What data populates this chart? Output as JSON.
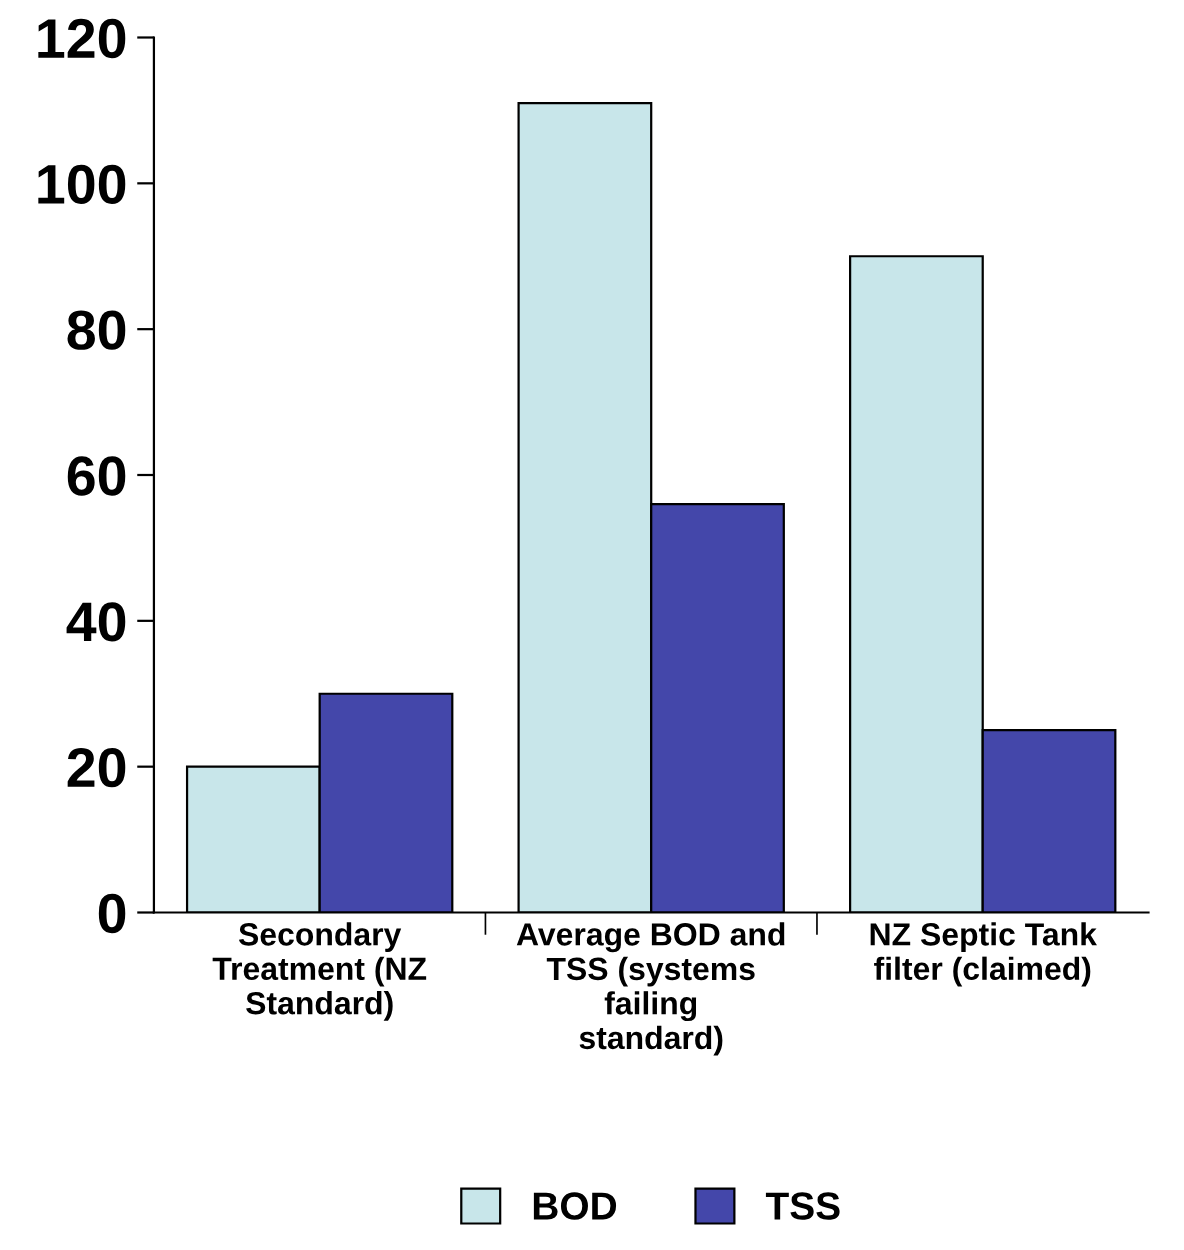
{
  "chart_data": {
    "type": "bar",
    "categories": [
      "Secondary Treatment (NZ Standard)",
      "Average BOD and TSS (systems failing standard)",
      "NZ Septic Tank filter (claimed)"
    ],
    "series": [
      {
        "name": "BOD",
        "color": "#c8e6ea",
        "values": [
          20,
          111,
          90
        ]
      },
      {
        "name": "TSS",
        "color": "#4447aa",
        "values": [
          30,
          56,
          25
        ]
      }
    ],
    "ylim": [
      0,
      120
    ],
    "yticks": [
      0,
      20,
      40,
      60,
      80,
      100,
      120
    ],
    "grid": false,
    "legend": "bottom"
  }
}
